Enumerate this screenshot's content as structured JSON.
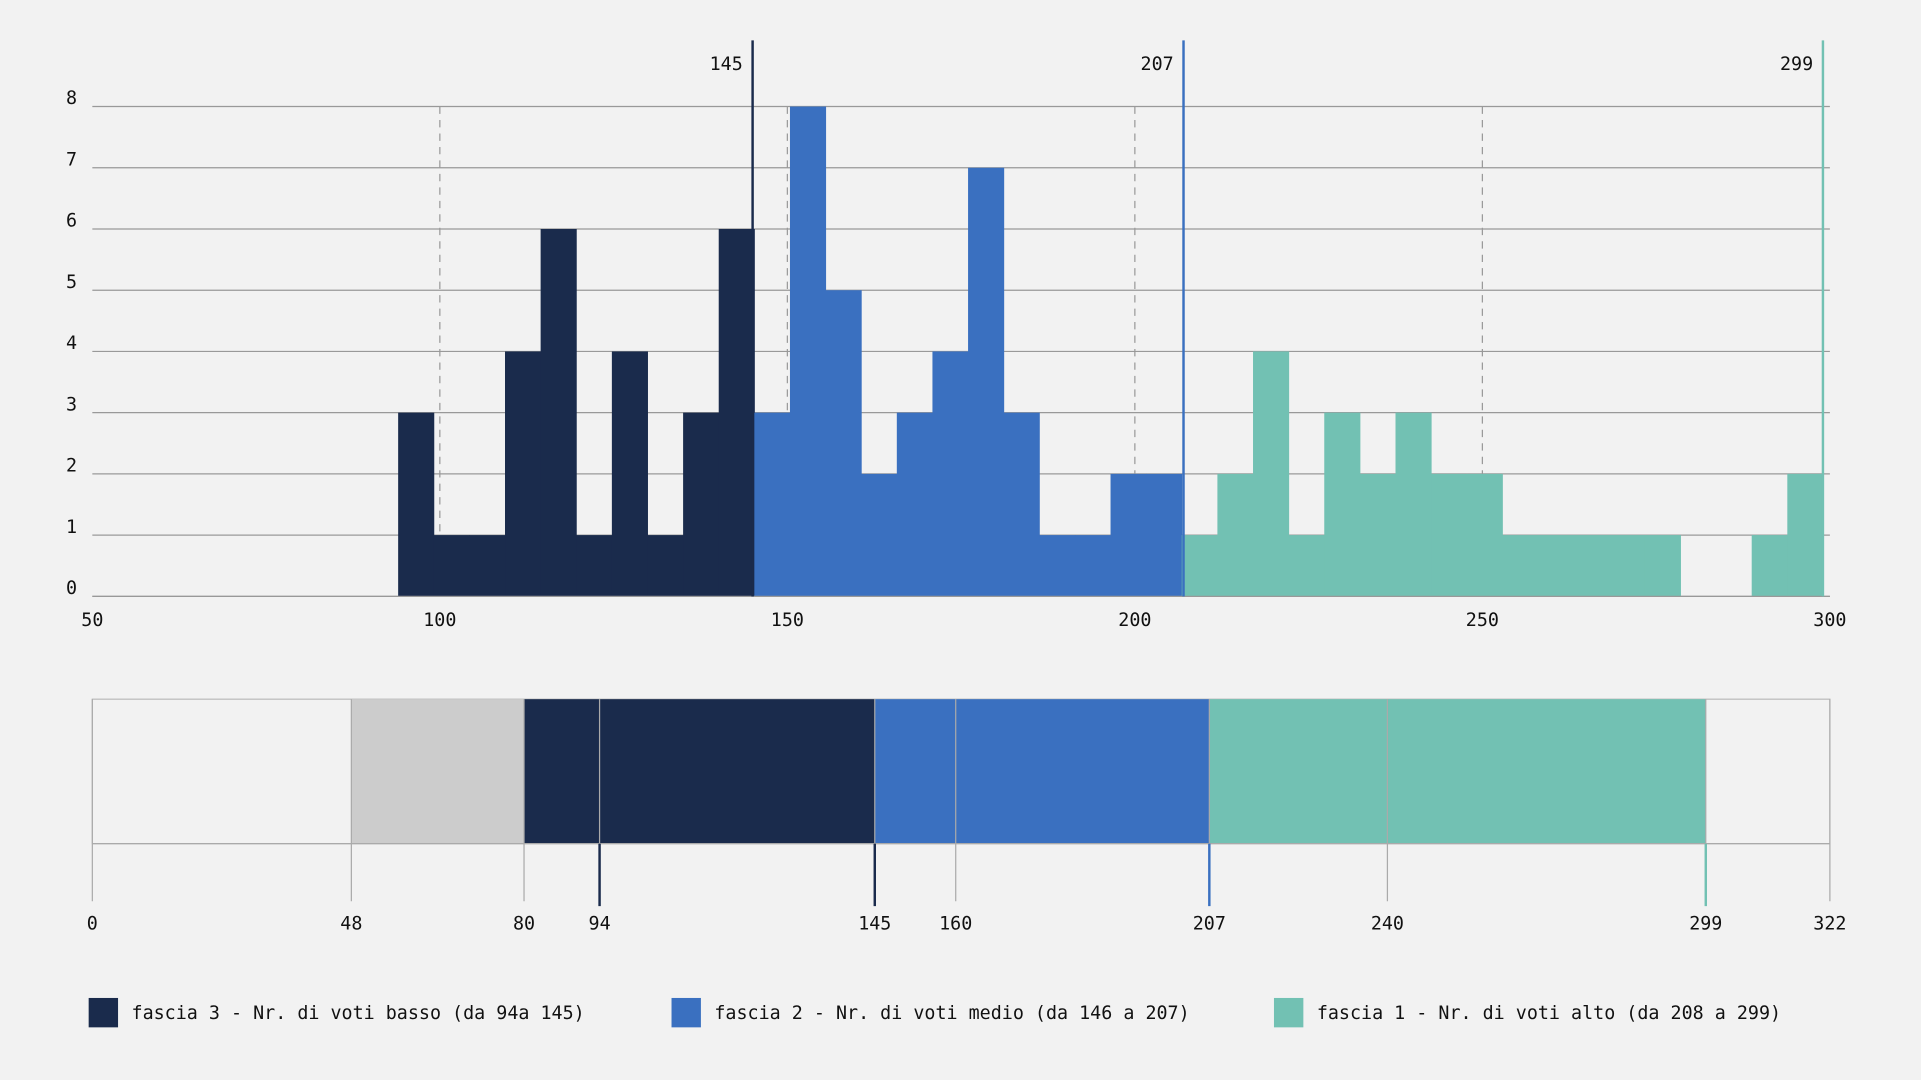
{
  "chart_data": [
    {
      "type": "histogram",
      "xlim": [
        50,
        300
      ],
      "xticks": [
        50,
        100,
        150,
        200,
        250,
        300
      ],
      "ylim": [
        0,
        8
      ],
      "yticks": [
        0,
        1,
        2,
        3,
        4,
        5,
        6,
        7,
        8
      ],
      "grid": true,
      "series": [
        {
          "name": "fascia 3 - Nr. di voti basso (da 94a 145)",
          "color": "#1a2b4c",
          "bins": [
            94,
            99.125,
            104.25,
            109.375,
            114.5,
            119.625,
            124.75,
            129.875,
            135,
            140.125,
            145.25
          ],
          "values": [
            3,
            1,
            1,
            4,
            6,
            1,
            4,
            1,
            3,
            6
          ]
        },
        {
          "name": "fascia 2 - Nr. di voti medio (da 146 a 207)",
          "color": "#3a70c0",
          "bins": [
            145.25,
            150.375,
            155.5,
            160.625,
            165.75,
            170.875,
            176,
            181.125,
            186.25,
            191.375,
            196.5,
            201.625,
            206.75
          ],
          "values": [
            3,
            8,
            5,
            2,
            3,
            4,
            7,
            3,
            1,
            1,
            2,
            2
          ]
        },
        {
          "name": "fascia 1 - Nr. di voti alto (da 208 a 299)",
          "color": "#72c1b3",
          "bins": [
            206.75,
            211.875,
            217,
            222.125,
            227.25,
            232.375,
            237.5,
            242.625,
            247.75,
            252.875,
            258,
            263.125,
            268.25,
            273.375,
            278.5,
            283.625,
            288.75,
            293.875,
            299
          ],
          "values": [
            1,
            2,
            4,
            1,
            3,
            2,
            3,
            2,
            2,
            1,
            1,
            1,
            1,
            1,
            0,
            0,
            1,
            2
          ]
        }
      ],
      "markers": [
        {
          "value": 145,
          "color": "#1a2b4c"
        },
        {
          "value": 207,
          "color": "#3a70c0"
        },
        {
          "value": 299,
          "color": "#72c1b3"
        }
      ]
    },
    {
      "type": "range_bar",
      "xlim": [
        0,
        322
      ],
      "xticks": [
        0,
        48,
        80,
        94,
        145,
        160,
        207,
        240,
        299,
        322
      ],
      "segments": [
        {
          "start": 48,
          "end": 80,
          "color": "#cccccc"
        },
        {
          "start": 80,
          "end": 145,
          "color": "#1a2b4c"
        },
        {
          "start": 145,
          "end": 207,
          "color": "#3a70c0"
        },
        {
          "start": 207,
          "end": 299,
          "color": "#72c1b3"
        }
      ],
      "markers": [
        {
          "value": 94,
          "color": "#1a2b4c"
        },
        {
          "value": 145,
          "color": "#1a2b4c"
        },
        {
          "value": 207,
          "color": "#3a70c0"
        },
        {
          "value": 299,
          "color": "#72c1b3"
        }
      ]
    }
  ]
}
